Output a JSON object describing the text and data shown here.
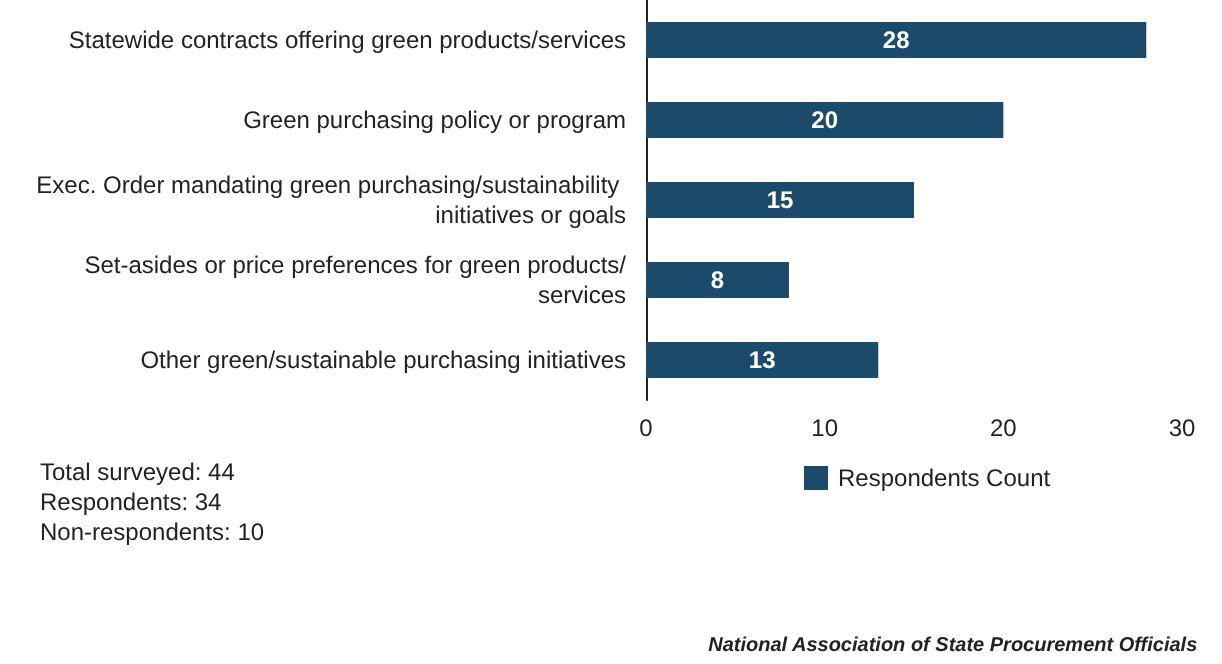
{
  "chart_data": {
    "type": "bar",
    "orientation": "horizontal",
    "categories": [
      "Statewide contracts offering green products/services",
      "Green purchasing policy or program",
      "Exec. Order mandating green purchasing/sustainability initiatives or goals",
      "Set-asides or price preferences for green products/services",
      "Other green/sustainable purchasing initiatives"
    ],
    "series": [
      {
        "name": "Respondents Count",
        "color": "#1b4a6b",
        "values": [
          28,
          20,
          15,
          8,
          13
        ]
      }
    ],
    "xlim": [
      0,
      30
    ],
    "xticks": [
      0,
      10,
      20,
      30
    ],
    "data_labels": true,
    "grid": false,
    "legend": "bottom",
    "annotations": [
      "Total surveyed: 44",
      "Respondents: 34",
      "Non-respondents: 10",
      "National Association of State Procurement Officials"
    ]
  }
}
